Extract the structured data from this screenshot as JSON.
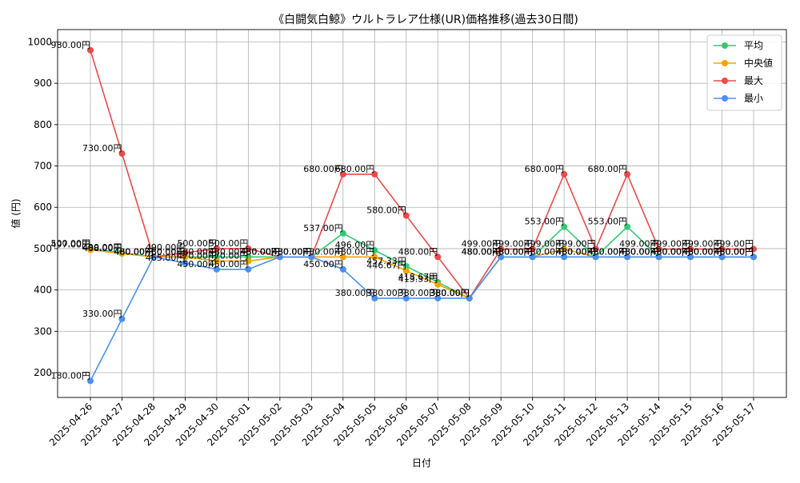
{
  "chart_data": {
    "type": "line",
    "title": "《白闘気白鯨》ウルトラレア仕様(UR)価格推移(過去30日間)",
    "xlabel": "日付",
    "ylabel": "値 (円)",
    "ylim": [
      140,
      1030
    ],
    "yticks": [
      200,
      300,
      400,
      500,
      600,
      700,
      800,
      900,
      1000
    ],
    "grid": true,
    "legend_position": "top-right",
    "label_suffix": "円",
    "categories": [
      "2025-04-26",
      "2025-04-27",
      "2025-04-28",
      "2025-04-29",
      "2025-04-30",
      "2025-05-01",
      "2025-05-02",
      "2025-05-03",
      "2025-05-04",
      "2025-05-05",
      "2025-05-06",
      "2025-05-07",
      "2025-05-08",
      "2025-05-09",
      "2025-05-10",
      "2025-05-11",
      "2025-05-12",
      "2025-05-13",
      "2025-05-14",
      "2025-05-15",
      "2025-05-16",
      "2025-05-17"
    ],
    "series": [
      {
        "name": "平均",
        "color": "#2ecc71",
        "values": [
          500,
          490,
          480,
          480,
          480,
          480,
          480,
          480,
          537,
          496,
          457.33,
          418.67,
          380,
          480,
          480,
          553,
          480,
          553,
          480,
          480,
          480,
          480
        ]
      },
      {
        "name": "中央値",
        "color": "#f5a300",
        "values": [
          497,
          488,
          480,
          480,
          470,
          470,
          480,
          480,
          480,
          480,
          446.67,
          413.33,
          380,
          480,
          480,
          499,
          480,
          480,
          480,
          480,
          480,
          480
        ]
      },
      {
        "name": "最大",
        "color": "#f04848",
        "values": [
          980,
          730,
          480,
          490,
          500,
          500,
          480,
          480,
          680,
          680,
          580,
          480,
          380,
          499,
          499,
          680,
          499,
          680,
          499,
          499,
          499,
          499
        ]
      },
      {
        "name": "最小",
        "color": "#4a90f0",
        "values": [
          180,
          330,
          480,
          465,
          450,
          450,
          480,
          480,
          450,
          380,
          380,
          380,
          380,
          480,
          480,
          480,
          480,
          480,
          480,
          480,
          480,
          480
        ]
      }
    ]
  }
}
